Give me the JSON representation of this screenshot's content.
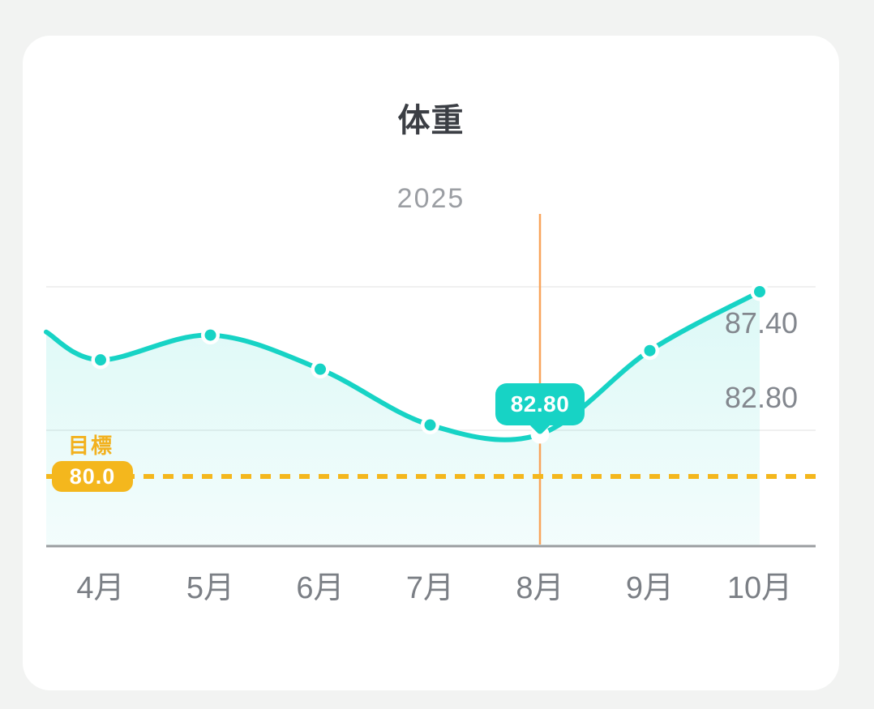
{
  "header": {
    "title": "体重",
    "year_label": "2025"
  },
  "chart_data": {
    "type": "line",
    "title": "体重",
    "subtitle": "2025",
    "categories": [
      "4月",
      "5月",
      "6月",
      "7月",
      "8月",
      "9月",
      "10月"
    ],
    "series": [
      {
        "name": "体重",
        "values": [
          85.2,
          86.0,
          84.9,
          83.1,
          82.8,
          85.5,
          87.4
        ],
        "values_estimated_except_labeled": true
      }
    ],
    "edge_start_value": 86.1,
    "selected_point": {
      "index": 4,
      "category": "8月",
      "label": "82.80",
      "value": 82.8
    },
    "y_axis_labels": [
      {
        "text": "87.40",
        "value": 87.4
      },
      {
        "text": "82.80",
        "value": 82.8
      }
    ],
    "goal": {
      "label": "目標",
      "value_label": "80.0",
      "value": 80.0
    },
    "y_anchors": {
      "top_value": 87.4,
      "bottom_value": 82.8
    },
    "ylim_hint": [
      79.5,
      89.5
    ],
    "grid": true,
    "legend": false,
    "colors": {
      "line": "#17d3c5",
      "marker_core": "#17d3c5",
      "marker_ring": "#ffffff",
      "area_top": "rgba(23,211,197,0.15)",
      "area_bottom": "rgba(23,211,197,0.05)",
      "goal": "#f4b71d",
      "selected_vline": "#f9a45b",
      "axis": "#9a9da0",
      "gridline": "#f0f0f0",
      "axis_text": "#7b7f85",
      "value_text": "#83878e",
      "year_text": "#9b9ea3",
      "title_text": "#3b3e44",
      "card": "#ffffff",
      "page": "#f2f3f2"
    }
  }
}
